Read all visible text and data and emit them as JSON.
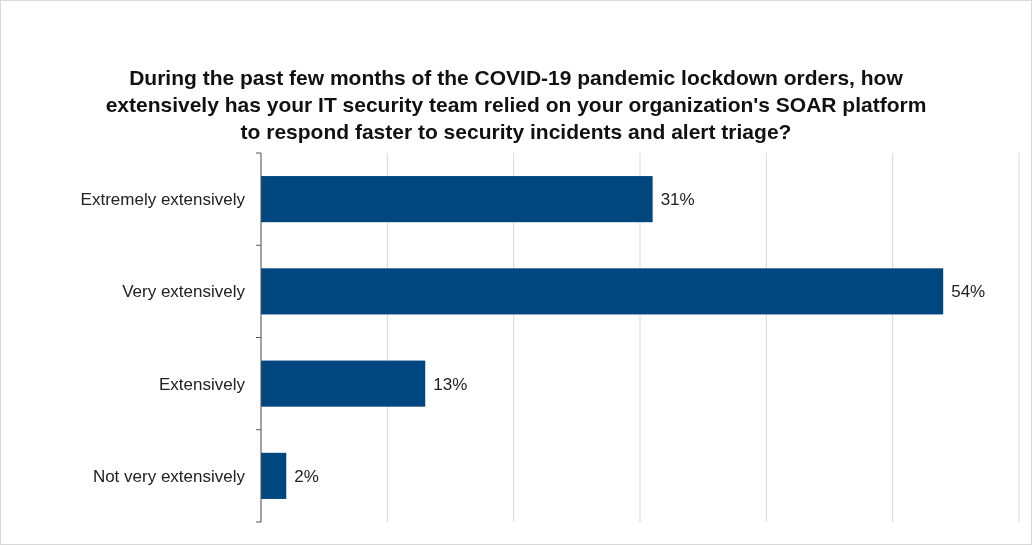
{
  "chart_data": {
    "type": "bar",
    "orientation": "horizontal",
    "title": "During the past few months of the COVID-19 pandemic lockdown orders, how extensively has your IT security team relied on your organization's SOAR platform to respond faster to security incidents and alert triage?",
    "categories": [
      "Extremely extensively",
      "Very extensively",
      "Extensively",
      "Not very extensively"
    ],
    "values": [
      31,
      54,
      13,
      2
    ],
    "color": "#00467f",
    "xlim": [
      0,
      60
    ],
    "xticks": [
      {
        "value": 0,
        "label": null
      },
      {
        "value": 10,
        "label": null
      },
      {
        "value": 20,
        "label": null
      },
      {
        "value": 30,
        "label": null
      },
      {
        "value": 40,
        "label": null
      },
      {
        "value": 50,
        "label": null
      },
      {
        "value": 60,
        "label": null
      }
    ],
    "value_labels": [
      "31%",
      "54%",
      "13%",
      "2%"
    ],
    "grid": "x",
    "tick_labels": "y"
  }
}
